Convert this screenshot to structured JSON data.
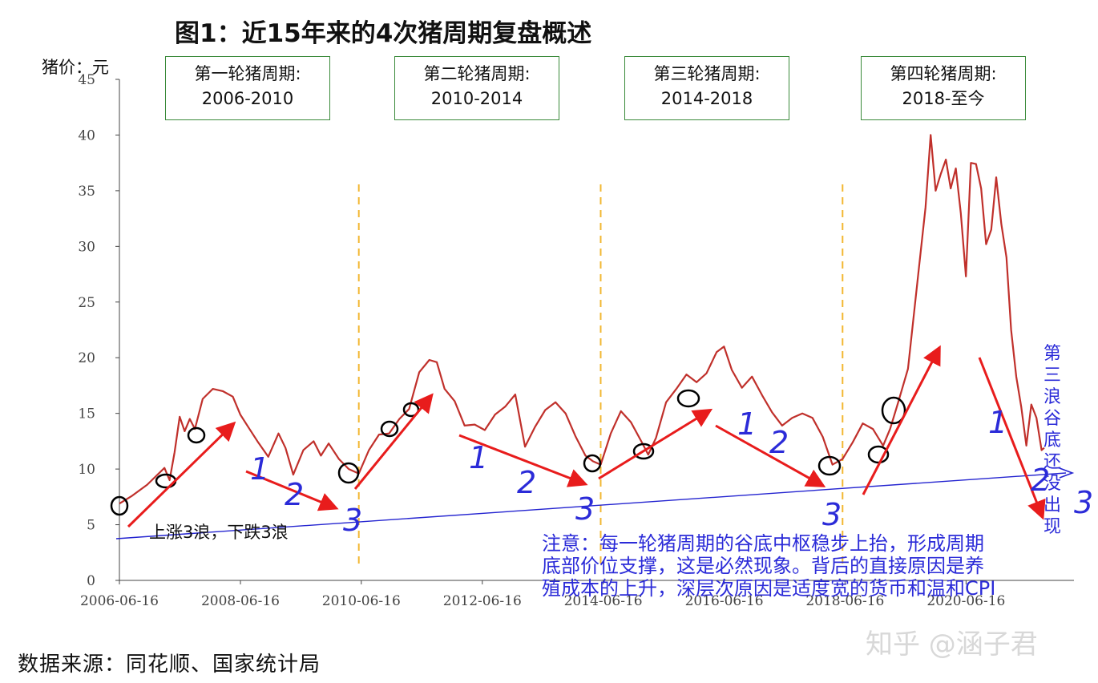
{
  "title": "图1：近15年来的4次猪周期复盘概述",
  "ylabel": "猪价：元",
  "cycles": [
    {
      "name": "第一轮猪周期:",
      "range": "2006-2010"
    },
    {
      "name": "第二轮猪周期:",
      "range": "2010-2014"
    },
    {
      "name": "第三轮猪周期:",
      "range": "2014-2018"
    },
    {
      "name": "第四轮猪周期:",
      "range": "2018-至今"
    }
  ],
  "wave_label": "上涨3浪，下跌3浪",
  "note_lines": [
    "注意：每一轮猪周期的谷底中枢稳步上抬，形成周期",
    "底部价位支撑，这是必然现象。背后的直接原因是养",
    "殖成本的上升，深层次原因是适度宽的货币和温和CPI"
  ],
  "third_wave_chars": [
    "第",
    "三",
    "浪",
    "谷",
    "底",
    "还",
    "没",
    "出",
    "现"
  ],
  "source": "数据来源：同花顺、国家统计局",
  "watermark": "知乎 @涵子君",
  "colors": {
    "line": "#c0302b",
    "arrow": "#e81c1c",
    "support": "#2424d0",
    "divider": "#f2b731",
    "handwriting": "#2b2bd8"
  },
  "chart_data": {
    "type": "line",
    "ylim": [
      0,
      45
    ],
    "y_ticks": [
      0,
      5,
      10,
      15,
      20,
      25,
      30,
      35,
      40,
      45
    ],
    "x_ticks": [
      "2006-06-16",
      "2008-06-16",
      "2010-06-16",
      "2012-06-16",
      "2014-06-16",
      "2016-06-16",
      "2018-06-16",
      "2020-06-16"
    ],
    "x_range": [
      "2006-06-16",
      "2021-10-01"
    ],
    "cycle_dividers": [
      "2010-06-01",
      "2014-06-01",
      "2018-06-01"
    ],
    "series": [
      {
        "values_by_date": [
          [
            "2006-06-16",
            6.9
          ],
          [
            "2006-09-01",
            7.6
          ],
          [
            "2006-12-01",
            8.6
          ],
          [
            "2007-02-01",
            9.5
          ],
          [
            "2007-03-15",
            10.1
          ],
          [
            "2007-04-15",
            9.0
          ],
          [
            "2007-05-15",
            11.5
          ],
          [
            "2007-06-15",
            14.7
          ],
          [
            "2007-07-15",
            13.4
          ],
          [
            "2007-08-15",
            14.5
          ],
          [
            "2007-09-15",
            13.6
          ],
          [
            "2007-11-01",
            16.3
          ],
          [
            "2008-01-01",
            17.2
          ],
          [
            "2008-03-01",
            17.0
          ],
          [
            "2008-05-01",
            16.5
          ],
          [
            "2008-06-15",
            14.9
          ],
          [
            "2008-08-01",
            13.8
          ],
          [
            "2008-10-01",
            12.4
          ],
          [
            "2008-12-01",
            11.1
          ],
          [
            "2009-02-01",
            13.2
          ],
          [
            "2009-03-15",
            11.9
          ],
          [
            "2009-05-01",
            9.5
          ],
          [
            "2009-07-01",
            11.7
          ],
          [
            "2009-09-01",
            12.5
          ],
          [
            "2009-10-15",
            11.2
          ],
          [
            "2009-12-01",
            12.3
          ],
          [
            "2010-02-01",
            10.9
          ],
          [
            "2010-04-01",
            10.0
          ],
          [
            "2010-06-01",
            9.6
          ],
          [
            "2010-08-01",
            11.7
          ],
          [
            "2010-10-01",
            13.1
          ],
          [
            "2010-12-01",
            13.2
          ],
          [
            "2011-02-01",
            14.5
          ],
          [
            "2011-04-01",
            15.4
          ],
          [
            "2011-06-01",
            18.7
          ],
          [
            "2011-08-01",
            19.8
          ],
          [
            "2011-09-15",
            19.6
          ],
          [
            "2011-11-01",
            17.2
          ],
          [
            "2012-01-01",
            16.1
          ],
          [
            "2012-03-01",
            13.9
          ],
          [
            "2012-05-01",
            14.0
          ],
          [
            "2012-07-01",
            13.5
          ],
          [
            "2012-09-01",
            14.9
          ],
          [
            "2012-11-01",
            15.6
          ],
          [
            "2013-01-01",
            16.7
          ],
          [
            "2013-03-01",
            12.0
          ],
          [
            "2013-05-01",
            13.8
          ],
          [
            "2013-07-01",
            15.3
          ],
          [
            "2013-09-01",
            16.0
          ],
          [
            "2013-11-01",
            15.0
          ],
          [
            "2014-01-01",
            12.9
          ],
          [
            "2014-03-01",
            11.2
          ],
          [
            "2014-04-15",
            10.7
          ],
          [
            "2014-06-01",
            10.4
          ],
          [
            "2014-08-01",
            13.2
          ],
          [
            "2014-10-01",
            15.2
          ],
          [
            "2014-12-01",
            14.2
          ],
          [
            "2015-02-01",
            12.5
          ],
          [
            "2015-03-15",
            11.3
          ],
          [
            "2015-05-01",
            12.8
          ],
          [
            "2015-07-01",
            16.0
          ],
          [
            "2015-09-01",
            17.2
          ],
          [
            "2015-11-01",
            18.5
          ],
          [
            "2016-01-01",
            17.8
          ],
          [
            "2016-03-01",
            18.6
          ],
          [
            "2016-05-01",
            20.5
          ],
          [
            "2016-06-15",
            21.0
          ],
          [
            "2016-08-01",
            18.9
          ],
          [
            "2016-10-01",
            17.3
          ],
          [
            "2016-12-01",
            18.3
          ],
          [
            "2017-02-01",
            16.6
          ],
          [
            "2017-04-01",
            15.1
          ],
          [
            "2017-06-01",
            13.9
          ],
          [
            "2017-08-01",
            14.6
          ],
          [
            "2017-10-01",
            15.0
          ],
          [
            "2017-12-01",
            14.6
          ],
          [
            "2018-02-01",
            12.9
          ],
          [
            "2018-04-01",
            10.4
          ],
          [
            "2018-06-01",
            10.9
          ],
          [
            "2018-08-01",
            12.4
          ],
          [
            "2018-10-01",
            14.1
          ],
          [
            "2018-12-01",
            13.6
          ],
          [
            "2019-02-01",
            12.1
          ],
          [
            "2019-03-15",
            13.6
          ],
          [
            "2019-05-01",
            15.9
          ],
          [
            "2019-07-01",
            19.0
          ],
          [
            "2019-09-01",
            27.5
          ],
          [
            "2019-10-15",
            33.5
          ],
          [
            "2019-11-15",
            40.0
          ],
          [
            "2019-12-15",
            35.0
          ],
          [
            "2020-01-15",
            36.5
          ],
          [
            "2020-02-15",
            37.8
          ],
          [
            "2020-03-15",
            35.2
          ],
          [
            "2020-04-15",
            37.0
          ],
          [
            "2020-05-15",
            33.0
          ],
          [
            "2020-06-15",
            27.3
          ],
          [
            "2020-07-15",
            37.5
          ],
          [
            "2020-08-15",
            37.4
          ],
          [
            "2020-09-15",
            35.2
          ],
          [
            "2020-10-15",
            30.2
          ],
          [
            "2020-11-15",
            31.5
          ],
          [
            "2020-12-15",
            36.2
          ],
          [
            "2021-01-15",
            32.0
          ],
          [
            "2021-02-15",
            29.0
          ],
          [
            "2021-03-15",
            22.5
          ],
          [
            "2021-04-15",
            18.3
          ],
          [
            "2021-05-15",
            15.6
          ],
          [
            "2021-06-15",
            12.1
          ],
          [
            "2021-07-15",
            15.8
          ],
          [
            "2021-08-15",
            14.6
          ],
          [
            "2021-09-15",
            11.7
          ],
          [
            "2021-10-01",
            11.9
          ]
        ]
      }
    ]
  }
}
